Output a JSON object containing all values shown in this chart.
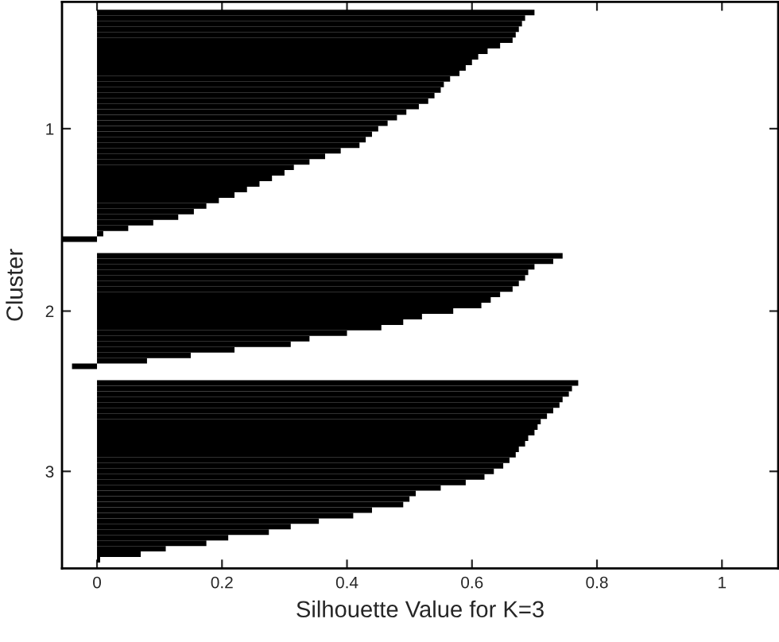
{
  "chart_data": {
    "type": "bar",
    "orientation": "horizontal",
    "xlabel": "Silhouette Value for K=3",
    "ylabel": "Cluster",
    "categories": [
      null,
      null,
      null,
      null,
      null,
      null,
      null,
      null,
      null,
      null,
      null,
      null,
      null,
      null,
      null,
      null,
      null,
      null,
      null,
      null,
      null,
      "1",
      null,
      null,
      null,
      null,
      null,
      null,
      null,
      null,
      null,
      null,
      null,
      null,
      null,
      null,
      null,
      null,
      null,
      null,
      null,
      null,
      null,
      null,
      null,
      null,
      null,
      null,
      null,
      null,
      null,
      null,
      null,
      null,
      "2",
      null,
      null,
      null,
      null,
      null,
      null,
      null,
      null,
      null,
      null,
      null,
      null,
      null,
      null,
      null,
      null,
      null,
      null,
      null,
      null,
      null,
      null,
      null,
      null,
      null,
      null,
      null,
      null,
      "3",
      null,
      null,
      null,
      null,
      null,
      null,
      null,
      null,
      null,
      null,
      null,
      null,
      null,
      null,
      null,
      null
    ],
    "values": [
      0.7,
      0.685,
      0.68,
      0.675,
      0.67,
      0.665,
      0.645,
      0.625,
      0.61,
      0.6,
      0.59,
      0.58,
      0.565,
      0.555,
      0.55,
      0.54,
      0.53,
      0.515,
      0.495,
      0.48,
      0.465,
      0.45,
      0.44,
      0.43,
      0.42,
      0.39,
      0.365,
      0.34,
      0.315,
      0.3,
      0.28,
      0.26,
      0.24,
      0.22,
      0.195,
      0.175,
      0.155,
      0.13,
      0.09,
      0.05,
      0.01,
      -0.055,
      null,
      null,
      0.745,
      0.73,
      0.7,
      0.69,
      0.685,
      0.675,
      0.665,
      0.645,
      0.63,
      0.615,
      0.57,
      0.52,
      0.49,
      0.455,
      0.4,
      0.34,
      0.31,
      0.22,
      0.15,
      0.08,
      -0.04,
      null,
      null,
      0.77,
      0.76,
      0.755,
      0.745,
      0.74,
      0.73,
      0.72,
      0.71,
      0.705,
      0.7,
      0.69,
      0.685,
      0.675,
      0.67,
      0.66,
      0.65,
      0.635,
      0.62,
      0.59,
      0.55,
      0.51,
      0.5,
      0.49,
      0.44,
      0.41,
      0.355,
      0.31,
      0.275,
      0.21,
      0.175,
      0.11,
      0.07,
      0.005
    ],
    "color": "#000000",
    "xlim": [
      -0.056,
      1.09
    ],
    "xticks": [
      0,
      0.2,
      0.4,
      0.6,
      0.8,
      1
    ],
    "grid": false
  }
}
